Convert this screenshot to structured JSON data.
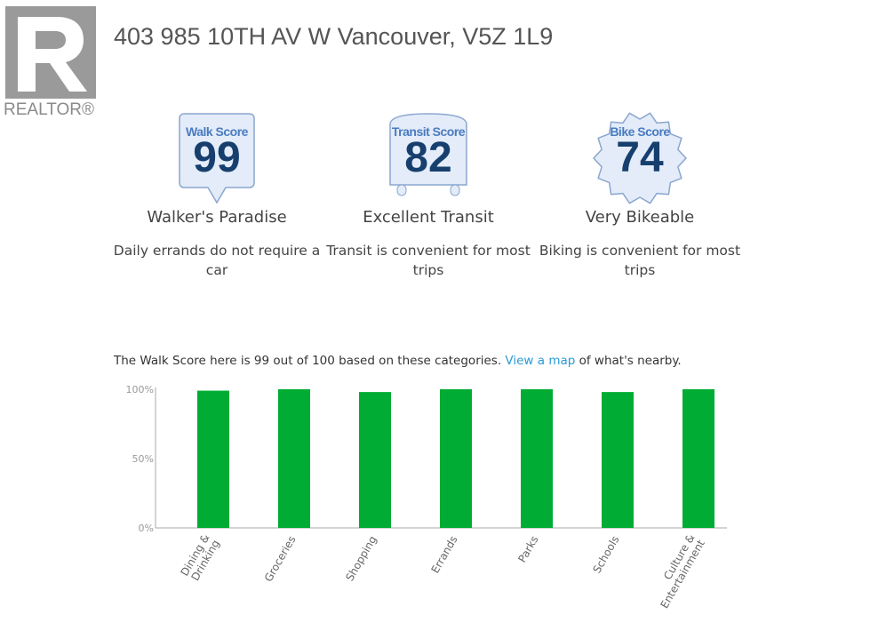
{
  "logo": {
    "text": "REALTOR®"
  },
  "title": "403 985 10TH AV W Vancouver, V5Z 1L9",
  "scores": [
    {
      "label": "Walk Score",
      "value": "99",
      "rating": "Walker's Paradise",
      "description": "Daily errands do not require a car",
      "icon": "speech-bubble-badge"
    },
    {
      "label": "Transit Score",
      "value": "82",
      "rating": "Excellent Transit",
      "description": "Transit is convenient for most trips",
      "icon": "bus-badge"
    },
    {
      "label": "Bike Score",
      "value": "74",
      "rating": "Very Bikeable",
      "description": "Biking is convenient for most trips",
      "icon": "gear-badge"
    }
  ],
  "intro": {
    "before": "The Walk Score here is 99 out of 100 based on these categories. ",
    "link": "View a map",
    "after": " of what's nearby."
  },
  "chart_data": {
    "type": "bar",
    "categories": [
      "Dining & Drinking",
      "Groceries",
      "Shopping",
      "Errands",
      "Parks",
      "Schools",
      "Culture & Entertainment"
    ],
    "values": [
      99,
      100,
      98,
      100,
      100,
      98,
      100
    ],
    "yticks": [
      "0%",
      "50%",
      "100%"
    ],
    "ylim": [
      0,
      100
    ],
    "color": "#00ac33"
  }
}
